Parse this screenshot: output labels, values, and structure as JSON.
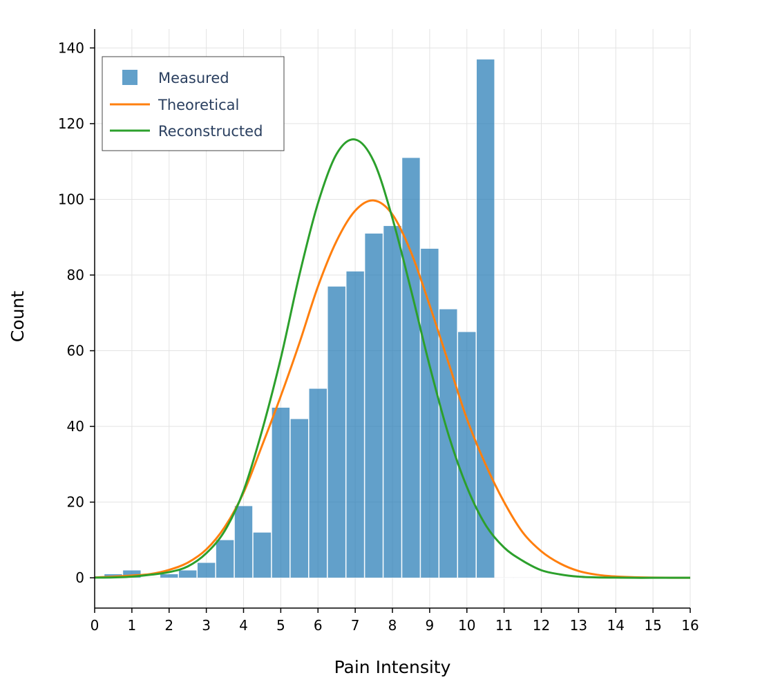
{
  "chart_data": {
    "type": "bar",
    "xlabel": "Pain Intensity",
    "ylabel": "Count",
    "xlim": [
      0,
      16
    ],
    "ylim": [
      -8,
      145
    ],
    "xticks": [
      0,
      1,
      2,
      3,
      4,
      5,
      6,
      7,
      8,
      9,
      10,
      11,
      12,
      13,
      14,
      15,
      16
    ],
    "yticks": [
      0,
      20,
      40,
      60,
      80,
      100,
      120,
      140
    ],
    "grid": true,
    "legend_position": "top-left",
    "legend": [
      {
        "name": "Measured",
        "kind": "bar",
        "color": "#1f77b4"
      },
      {
        "name": "Theoretical",
        "kind": "line",
        "color": "#ff7f0e"
      },
      {
        "name": "Reconstructed",
        "kind": "line",
        "color": "#2ca02c"
      }
    ],
    "histogram": {
      "name": "Measured",
      "color": "#1f77b4",
      "opacity": 0.7,
      "bin_start": 0.25,
      "bin_width": 0.5,
      "counts": [
        1,
        2,
        0,
        1,
        2,
        4,
        10,
        19,
        12,
        45,
        42,
        50,
        77,
        81,
        91,
        93,
        111,
        87,
        71,
        65,
        137,
        0,
        0,
        0,
        0,
        0
      ]
    },
    "series": [
      {
        "name": "Theoretical",
        "color": "#ff7f0e",
        "x": [
          0,
          0.5,
          1,
          1.5,
          2,
          2.5,
          3,
          3.5,
          4,
          4.5,
          5,
          5.5,
          6,
          6.5,
          7,
          7.5,
          8,
          8.5,
          9,
          9.5,
          10,
          10.5,
          11,
          11.5,
          12,
          12.5,
          13,
          13.5,
          14,
          14.5,
          15,
          15.5,
          16
        ],
        "values": [
          0.1,
          0.3,
          0.6,
          1.0,
          2.1,
          4.0,
          7.5,
          13.5,
          22.5,
          35,
          48,
          62,
          77,
          89,
          97,
          99.7,
          96,
          86,
          72,
          57,
          42,
          30,
          20,
          12,
          7,
          3.8,
          1.8,
          0.8,
          0.35,
          0.15,
          0.05,
          0.02,
          0
        ]
      },
      {
        "name": "Reconstructed",
        "color": "#2ca02c",
        "x": [
          0,
          0.5,
          1,
          1.5,
          2,
          2.5,
          3,
          3.5,
          4,
          4.5,
          5,
          5.5,
          6,
          6.5,
          7,
          7.5,
          8,
          8.5,
          9,
          9.5,
          10,
          10.5,
          11,
          11.5,
          12,
          12.5,
          13,
          13.5,
          14,
          14.5,
          15,
          15.5,
          16
        ],
        "values": [
          0.05,
          0.1,
          0.3,
          0.8,
          1.5,
          3.0,
          6.5,
          12.5,
          23,
          39,
          58,
          80,
          99,
          112,
          115.8,
          110,
          95,
          76,
          56,
          38,
          24,
          14,
          8,
          4.5,
          2.0,
          0.9,
          0.3,
          0.1,
          0.05,
          0,
          0,
          0,
          0
        ]
      }
    ]
  }
}
